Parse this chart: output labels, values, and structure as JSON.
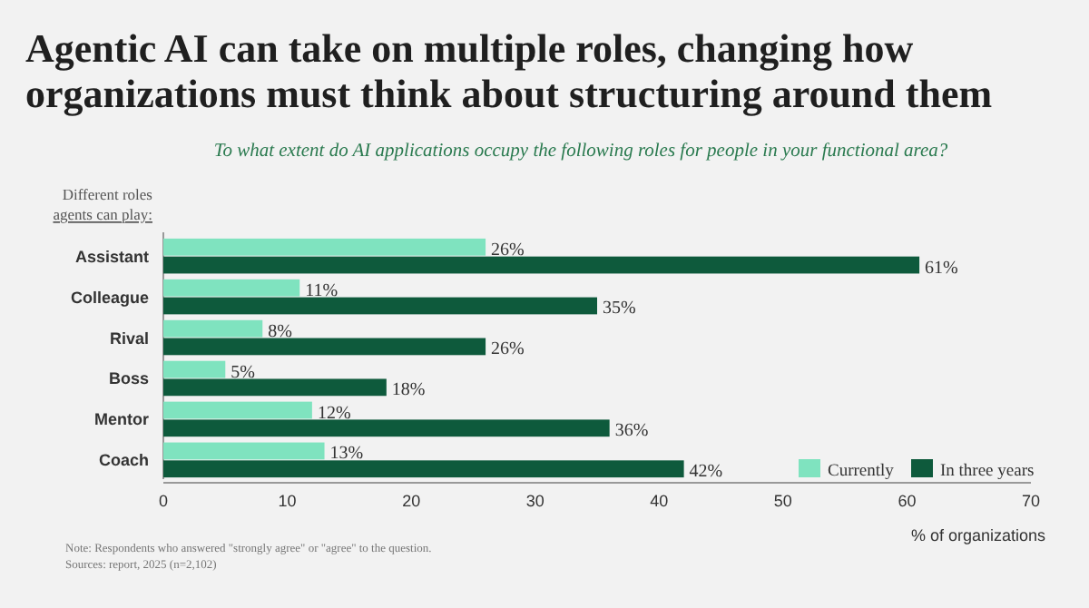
{
  "chart_data": {
    "type": "bar",
    "orientation": "horizontal",
    "title": "Agentic AI can take on multiple roles, changing how organizations must think about structuring around them",
    "subtitle": "To what extent do AI applications occupy the following roles for people in your functional area?",
    "ylabel": "Different roles agents can play:",
    "xlabel": "% of organizations",
    "categories": [
      "Assistant",
      "Colleague",
      "Rival",
      "Boss",
      "Mentor",
      "Coach"
    ],
    "series": [
      {
        "name": "Currently",
        "color": "#7fe3bf",
        "values": [
          26,
          11,
          8,
          5,
          12,
          13
        ],
        "value_labels": [
          "26%",
          "11%",
          "8%",
          "5%",
          "12%",
          "13%"
        ]
      },
      {
        "name": "In three years",
        "color": "#0e5a3c",
        "values": [
          61,
          35,
          26,
          18,
          36,
          42
        ],
        "value_labels": [
          "61%",
          "35%",
          "26%",
          "18%",
          "36%",
          "42%"
        ]
      }
    ],
    "xlim": [
      0,
      70
    ],
    "xticks": [
      0,
      10,
      20,
      30,
      40,
      50,
      60,
      70
    ],
    "grid": false,
    "legend": "bottom right",
    "annotations": [
      "Note: Respondents who answered \"strongly agree\" or \"agree\" to the question.",
      "Sources: report, 2025 (n=2,102)"
    ]
  }
}
